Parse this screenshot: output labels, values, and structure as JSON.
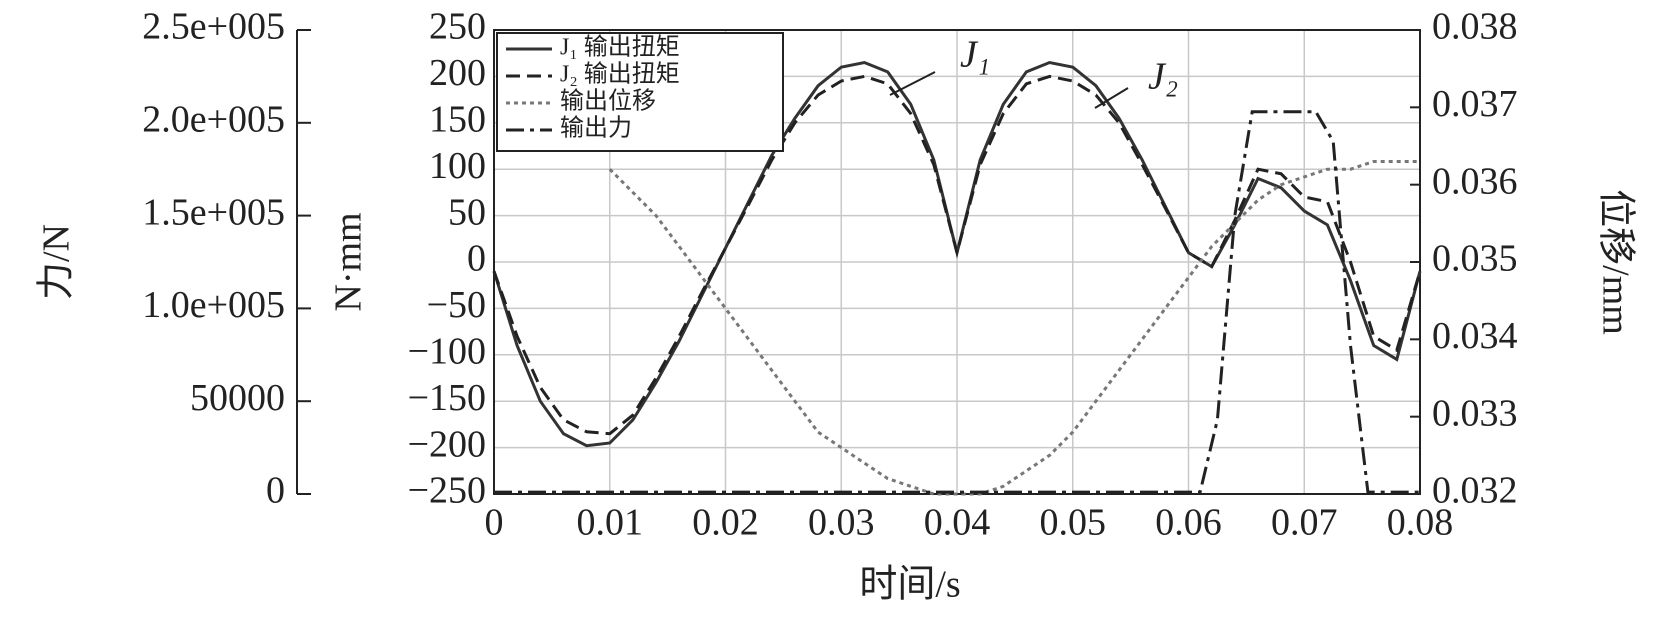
{
  "chart_data": {
    "type": "line",
    "x_label": "时间/s",
    "y_label": "N·mm",
    "y2_label": "位移/mm",
    "y3_label": "力/N",
    "x": [
      0,
      0.002,
      0.004,
      0.006,
      0.008,
      0.01,
      0.012,
      0.014,
      0.016,
      0.018,
      0.02,
      0.022,
      0.024,
      0.026,
      0.028,
      0.03,
      0.032,
      0.034,
      0.036,
      0.038,
      0.04,
      0.042,
      0.044,
      0.046,
      0.048,
      0.05,
      0.052,
      0.054,
      0.056,
      0.058,
      0.06,
      0.062,
      0.064,
      0.066,
      0.068,
      0.07,
      0.072,
      0.074,
      0.076,
      0.078,
      0.08
    ],
    "series": [
      {
        "name": "J₁ 输出扭矩",
        "color": "#333333",
        "style": "solid",
        "axis": "y",
        "values": [
          -10,
          -90,
          -150,
          -185,
          -198,
          -195,
          -170,
          -130,
          -85,
          -35,
          15,
          65,
          115,
          155,
          190,
          210,
          215,
          205,
          170,
          110,
          10,
          110,
          170,
          205,
          215,
          210,
          190,
          155,
          110,
          60,
          10,
          -5,
          40,
          90,
          80,
          55,
          40,
          -20,
          -90,
          -105,
          -10
        ]
      },
      {
        "name": "J₂ 输出扭矩",
        "color": "#222222",
        "style": "dashed",
        "axis": "y",
        "values": [
          -10,
          -80,
          -135,
          -170,
          -183,
          -185,
          -165,
          -125,
          -80,
          -32,
          15,
          62,
          110,
          150,
          180,
          195,
          200,
          192,
          160,
          105,
          10,
          105,
          160,
          192,
          200,
          195,
          180,
          150,
          105,
          58,
          10,
          -5,
          45,
          100,
          95,
          70,
          65,
          0,
          -80,
          -95,
          -10
        ]
      },
      {
        "name": "输出位移",
        "color": "#777777",
        "style": "dotted",
        "axis": "y2",
        "values": [
          null,
          null,
          null,
          null,
          null,
          0.0362,
          0.0359,
          0.0356,
          0.0352,
          0.0348,
          0.0344,
          0.034,
          0.0336,
          0.0332,
          0.0328,
          0.0326,
          0.0324,
          0.0322,
          0.0321,
          0.032,
          0.032,
          0.032,
          0.0321,
          0.0323,
          0.0325,
          0.0328,
          0.0332,
          0.0336,
          0.034,
          0.0344,
          0.0348,
          0.0352,
          0.0355,
          0.0358,
          0.036,
          0.0361,
          0.0362,
          0.0362,
          0.0363,
          0.0363,
          0.0363
        ]
      },
      {
        "name": "输出力",
        "color": "#222222",
        "style": "dashdot",
        "axis": "y3",
        "x": [
          0,
          0.061,
          0.0625,
          0.064,
          0.0655,
          0.071,
          0.0725,
          0.074,
          0.0755,
          0.08
        ],
        "values": [
          1000,
          1000,
          40000,
          150000,
          206000,
          206000,
          190000,
          80000,
          1000,
          1000
        ]
      }
    ],
    "annotations": [
      "J₁",
      "J₂"
    ],
    "xlim": [
      0,
      0.08
    ],
    "xticks": [
      0,
      0.01,
      0.02,
      0.03,
      0.04,
      0.05,
      0.06,
      0.07,
      0.08
    ],
    "ylim": [
      -250,
      250
    ],
    "yticks": [
      {
        "value": -250,
        "label": "−250"
      },
      {
        "value": -200,
        "label": "−200"
      },
      {
        "value": -150,
        "label": "−150"
      },
      {
        "value": -100,
        "label": "−100"
      },
      {
        "value": -50,
        "label": "−50"
      },
      0,
      50,
      100,
      150,
      200,
      250
    ],
    "y2lim": [
      0.032,
      0.038
    ],
    "y2ticks": [
      0.032,
      0.033,
      0.034,
      0.035,
      0.036,
      0.037,
      0.038
    ],
    "y3lim": [
      0,
      250000
    ],
    "y3ticks": [
      0,
      50000,
      {
        "value": 100000,
        "label": "1.0e+005"
      },
      {
        "value": 150000,
        "label": "1.5e+005"
      },
      {
        "value": 200000,
        "label": "2.0e+005"
      },
      {
        "value": 250000,
        "label": "2.5e+005"
      }
    ],
    "grid": true,
    "legend": "upper left"
  }
}
